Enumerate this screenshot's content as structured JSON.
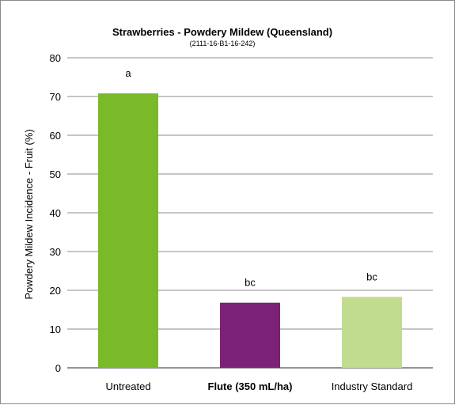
{
  "chart_data": {
    "type": "bar",
    "title": "Strawberries - Powdery Mildew (Queensland)",
    "subtitle": "(2111-16-B1-16-242)",
    "xlabel": "",
    "ylabel": "Powdery Mildew Incidence - Fruit (%)",
    "ylim": [
      0,
      80
    ],
    "yticks": [
      0,
      10,
      20,
      30,
      40,
      50,
      60,
      70,
      80
    ],
    "grid": true,
    "categories": [
      "Untreated",
      "Flute (350 mL/ha)",
      "Industry Standard"
    ],
    "bold_categories": [
      false,
      true,
      false
    ],
    "values": [
      70.8,
      16.8,
      18.3
    ],
    "data_labels": [
      "a",
      "bc",
      "bc"
    ],
    "colors": [
      "#7ab929",
      "#7b2176",
      "#c1dc8e"
    ]
  }
}
